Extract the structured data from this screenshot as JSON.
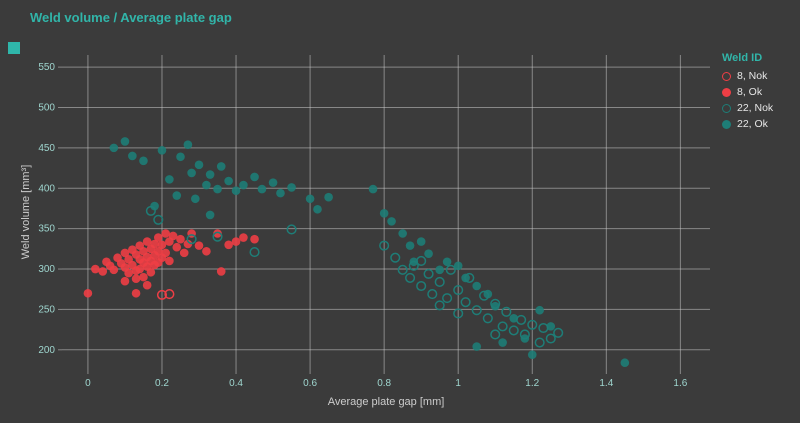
{
  "page": {
    "background": "#3b3b3b",
    "accent_teal": "#31b5a9",
    "accent_red": "#ee3e45",
    "grid_color": "#c8c8c8"
  },
  "chart_data": {
    "type": "scatter",
    "title": "Weld volume / Average plate gap",
    "xlabel": "Average plate gap [mm]",
    "ylabel": "Weld volume [mm³]",
    "legend_title": "Weld ID",
    "legend_position": "right",
    "grid": true,
    "xlim": [
      -0.07,
      1.68
    ],
    "ylim": [
      175,
      565
    ],
    "x_ticks": {
      "values": [
        0,
        0.2,
        0.4,
        0.6,
        0.8,
        1,
        1.2,
        1.4,
        1.6
      ],
      "labels": [
        "0",
        "0.2",
        "0.4",
        "0.6",
        "0.8",
        "1",
        "1.2",
        "1.4",
        "1.6"
      ]
    },
    "y_ticks": {
      "values": [
        200,
        250,
        300,
        350,
        400,
        450,
        500,
        550
      ],
      "labels": [
        "200",
        "250",
        "300",
        "350",
        "400",
        "450",
        "500",
        "550"
      ]
    },
    "series": [
      {
        "name": "8, Nok",
        "color": "#ee3e45",
        "marker": "open",
        "points": [
          [
            0.2,
            268
          ],
          [
            0.22,
            269
          ]
        ]
      },
      {
        "name": "8, Ok",
        "color": "#ee3e45",
        "marker": "filled",
        "points": [
          [
            0.0,
            270
          ],
          [
            0.02,
            300
          ],
          [
            0.04,
            297
          ],
          [
            0.05,
            309
          ],
          [
            0.06,
            304
          ],
          [
            0.07,
            299
          ],
          [
            0.08,
            314
          ],
          [
            0.09,
            307
          ],
          [
            0.1,
            320
          ],
          [
            0.1,
            302
          ],
          [
            0.1,
            285
          ],
          [
            0.11,
            312
          ],
          [
            0.11,
            295
          ],
          [
            0.12,
            324
          ],
          [
            0.12,
            305
          ],
          [
            0.13,
            318
          ],
          [
            0.13,
            298
          ],
          [
            0.13,
            288
          ],
          [
            0.13,
            270
          ],
          [
            0.14,
            329
          ],
          [
            0.14,
            312
          ],
          [
            0.14,
            300
          ],
          [
            0.15,
            322
          ],
          [
            0.15,
            308
          ],
          [
            0.15,
            290
          ],
          [
            0.16,
            334
          ],
          [
            0.16,
            315
          ],
          [
            0.16,
            303
          ],
          [
            0.16,
            280
          ],
          [
            0.17,
            325
          ],
          [
            0.17,
            310
          ],
          [
            0.17,
            296
          ],
          [
            0.18,
            331
          ],
          [
            0.18,
            317
          ],
          [
            0.18,
            305
          ],
          [
            0.19,
            339
          ],
          [
            0.19,
            322
          ],
          [
            0.19,
            308
          ],
          [
            0.2,
            330
          ],
          [
            0.2,
            314
          ],
          [
            0.21,
            344
          ],
          [
            0.21,
            320
          ],
          [
            0.22,
            334
          ],
          [
            0.22,
            310
          ],
          [
            0.23,
            341
          ],
          [
            0.24,
            327
          ],
          [
            0.25,
            337
          ],
          [
            0.26,
            320
          ],
          [
            0.27,
            331
          ],
          [
            0.28,
            344
          ],
          [
            0.3,
            329
          ],
          [
            0.32,
            322
          ],
          [
            0.35,
            344
          ],
          [
            0.36,
            297
          ],
          [
            0.38,
            330
          ],
          [
            0.4,
            334
          ],
          [
            0.42,
            339
          ],
          [
            0.45,
            337
          ]
        ]
      },
      {
        "name": "22, Nok",
        "color": "#1e7d77",
        "marker": "open",
        "points": [
          [
            0.17,
            372
          ],
          [
            0.19,
            361
          ],
          [
            0.28,
            337
          ],
          [
            0.35,
            340
          ],
          [
            0.45,
            321
          ],
          [
            0.55,
            349
          ],
          [
            0.8,
            329
          ],
          [
            0.83,
            314
          ],
          [
            0.85,
            299
          ],
          [
            0.87,
            289
          ],
          [
            0.88,
            304
          ],
          [
            0.9,
            310
          ],
          [
            0.9,
            279
          ],
          [
            0.92,
            294
          ],
          [
            0.93,
            269
          ],
          [
            0.95,
            284
          ],
          [
            0.95,
            255
          ],
          [
            0.97,
            264
          ],
          [
            0.98,
            299
          ],
          [
            1.0,
            274
          ],
          [
            1.0,
            245
          ],
          [
            1.02,
            259
          ],
          [
            1.03,
            289
          ],
          [
            1.05,
            249
          ],
          [
            1.07,
            267
          ],
          [
            1.08,
            239
          ],
          [
            1.1,
            257
          ],
          [
            1.1,
            219
          ],
          [
            1.12,
            229
          ],
          [
            1.13,
            247
          ],
          [
            1.15,
            224
          ],
          [
            1.17,
            237
          ],
          [
            1.18,
            219
          ],
          [
            1.2,
            231
          ],
          [
            1.22,
            209
          ],
          [
            1.23,
            227
          ],
          [
            1.25,
            214
          ],
          [
            1.27,
            221
          ]
        ]
      },
      {
        "name": "22, Ok",
        "color": "#1e7d77",
        "marker": "filled",
        "points": [
          [
            0.07,
            450
          ],
          [
            0.1,
            458
          ],
          [
            0.12,
            440
          ],
          [
            0.15,
            434
          ],
          [
            0.18,
            378
          ],
          [
            0.2,
            447
          ],
          [
            0.22,
            411
          ],
          [
            0.24,
            391
          ],
          [
            0.25,
            439
          ],
          [
            0.27,
            454
          ],
          [
            0.28,
            419
          ],
          [
            0.29,
            387
          ],
          [
            0.3,
            429
          ],
          [
            0.32,
            404
          ],
          [
            0.33,
            417
          ],
          [
            0.33,
            367
          ],
          [
            0.35,
            399
          ],
          [
            0.36,
            427
          ],
          [
            0.38,
            409
          ],
          [
            0.4,
            397
          ],
          [
            0.42,
            404
          ],
          [
            0.45,
            414
          ],
          [
            0.47,
            399
          ],
          [
            0.5,
            407
          ],
          [
            0.52,
            394
          ],
          [
            0.55,
            401
          ],
          [
            0.6,
            387
          ],
          [
            0.62,
            374
          ],
          [
            0.65,
            389
          ],
          [
            0.77,
            399
          ],
          [
            0.8,
            369
          ],
          [
            0.82,
            359
          ],
          [
            0.85,
            344
          ],
          [
            0.87,
            329
          ],
          [
            0.88,
            309
          ],
          [
            0.9,
            334
          ],
          [
            0.92,
            319
          ],
          [
            0.95,
            299
          ],
          [
            0.97,
            309
          ],
          [
            1.0,
            304
          ],
          [
            1.02,
            289
          ],
          [
            1.05,
            279
          ],
          [
            1.05,
            204
          ],
          [
            1.08,
            269
          ],
          [
            1.1,
            254
          ],
          [
            1.12,
            209
          ],
          [
            1.15,
            239
          ],
          [
            1.18,
            214
          ],
          [
            1.2,
            194
          ],
          [
            1.22,
            249
          ],
          [
            1.25,
            229
          ],
          [
            1.45,
            184
          ]
        ]
      }
    ]
  }
}
